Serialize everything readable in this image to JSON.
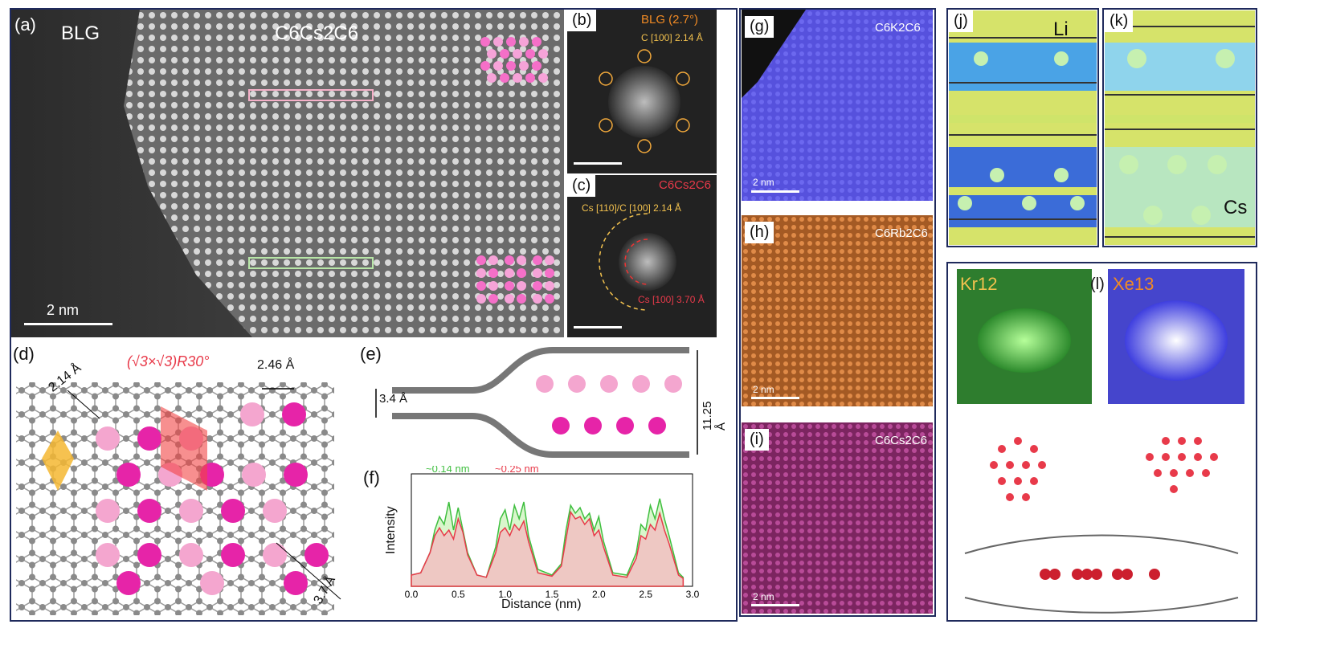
{
  "panel_a": {
    "label": "(a)",
    "left_title": "BLG",
    "right_title": "C6Cs2C6",
    "scale": "2 nm"
  },
  "panel_b": {
    "label": "(b)",
    "title": "BLG (2.7°)",
    "annotation": "C [100] 2.14 Å"
  },
  "panel_c": {
    "label": "(c)",
    "title": "C6Cs2C6",
    "ann_top": "Cs [110]/C [100] 2.14 Å",
    "ann_bottom": "Cs [100] 3.70 Å"
  },
  "panel_d": {
    "label": "(d)",
    "title": "(√3×√3)R30°",
    "d1": "2.14 Å",
    "d2": "2.46 Å",
    "d3": "3.7 Å"
  },
  "panel_e": {
    "label": "(e)",
    "gap_small": "3.4 Å",
    "gap_large": "11.25 Å"
  },
  "panel_f": {
    "label": "(f)",
    "ann_green": "~0.14 nm",
    "ann_red": "~0.25 nm",
    "ylabel": "Intensity",
    "xlabel": "Distance (nm)"
  },
  "panel_g": {
    "label": "(g)",
    "title": "C6K2C6",
    "scale": "2 nm"
  },
  "panel_h": {
    "label": "(h)",
    "title": "C6Rb2C6",
    "scale": "2 nm"
  },
  "panel_i": {
    "label": "(i)",
    "title": "C6Cs2C6",
    "scale": "2 nm"
  },
  "panel_j": {
    "label": "(j)",
    "element": "Li"
  },
  "panel_k": {
    "label": "(k)",
    "element": "Cs"
  },
  "panel_l": {
    "label": "(l)",
    "cluster1": "Kr12",
    "cluster2": "Xe13"
  },
  "colors": {
    "frame": "#1f2a5c",
    "green": "#3fbf3f",
    "red": "#e83a4a",
    "orange": "#f08a24",
    "pink": "#f7a8c9",
    "magenta": "#e02aa8"
  },
  "chart_data": {
    "type": "area",
    "title": "",
    "xlabel": "Distance (nm)",
    "ylabel": "Intensity",
    "xlim": [
      0,
      3.0
    ],
    "xticks": [
      "0.0",
      "0.5",
      "1.0",
      "1.5",
      "2.0",
      "2.5",
      "3.0"
    ],
    "series": [
      {
        "name": "green",
        "x": [
          0,
          0.1,
          0.2,
          0.25,
          0.3,
          0.35,
          0.4,
          0.45,
          0.5,
          0.55,
          0.6,
          0.7,
          0.8,
          0.9,
          0.95,
          1.0,
          1.05,
          1.1,
          1.15,
          1.2,
          1.25,
          1.35,
          1.5,
          1.6,
          1.65,
          1.7,
          1.75,
          1.8,
          1.85,
          1.9,
          1.95,
          2.0,
          2.05,
          2.15,
          2.3,
          2.4,
          2.45,
          2.5,
          2.55,
          2.6,
          2.65,
          2.7,
          2.75,
          2.85,
          2.9
        ],
        "y": [
          0.1,
          0.12,
          0.3,
          0.5,
          0.62,
          0.55,
          0.75,
          0.5,
          0.7,
          0.5,
          0.3,
          0.1,
          0.08,
          0.35,
          0.6,
          0.68,
          0.5,
          0.72,
          0.6,
          0.75,
          0.45,
          0.15,
          0.1,
          0.2,
          0.5,
          0.72,
          0.65,
          0.7,
          0.6,
          0.65,
          0.5,
          0.62,
          0.4,
          0.12,
          0.1,
          0.3,
          0.55,
          0.5,
          0.72,
          0.6,
          0.78,
          0.6,
          0.45,
          0.12,
          0.08
        ]
      },
      {
        "name": "red",
        "x": [
          0,
          0.1,
          0.2,
          0.25,
          0.3,
          0.35,
          0.4,
          0.45,
          0.5,
          0.55,
          0.6,
          0.7,
          0.8,
          0.9,
          0.95,
          1.0,
          1.05,
          1.1,
          1.15,
          1.2,
          1.25,
          1.35,
          1.5,
          1.6,
          1.65,
          1.7,
          1.75,
          1.8,
          1.85,
          1.9,
          1.95,
          2.0,
          2.05,
          2.15,
          2.3,
          2.4,
          2.45,
          2.5,
          2.55,
          2.6,
          2.65,
          2.7,
          2.75,
          2.85,
          2.9
        ],
        "y": [
          0.1,
          0.12,
          0.3,
          0.45,
          0.52,
          0.45,
          0.5,
          0.42,
          0.6,
          0.48,
          0.28,
          0.1,
          0.08,
          0.3,
          0.48,
          0.52,
          0.45,
          0.55,
          0.5,
          0.58,
          0.4,
          0.12,
          0.09,
          0.18,
          0.42,
          0.66,
          0.6,
          0.62,
          0.55,
          0.6,
          0.45,
          0.5,
          0.35,
          0.1,
          0.08,
          0.25,
          0.45,
          0.42,
          0.55,
          0.5,
          0.65,
          0.5,
          0.38,
          0.1,
          0.07
        ]
      }
    ]
  }
}
